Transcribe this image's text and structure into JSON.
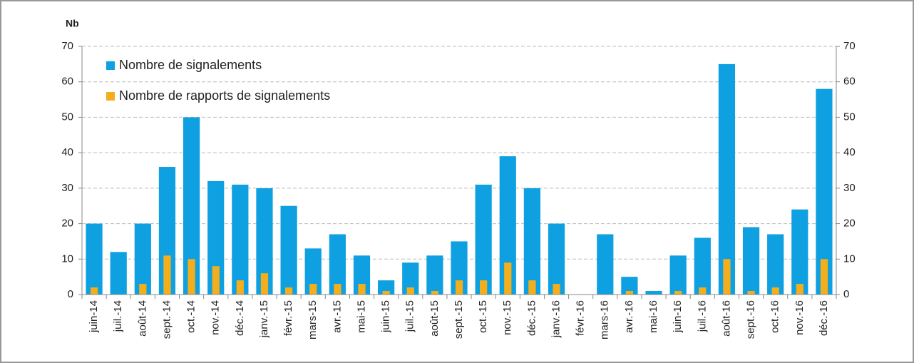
{
  "chart_data": {
    "type": "bar",
    "ylabel": "Nb",
    "categories": [
      "juin-14",
      "juil.-14",
      "août-14",
      "sept.-14",
      "oct.-14",
      "nov.-14",
      "déc.-14",
      "janv.-15",
      "févr.-15",
      "mars-15",
      "avr.-15",
      "mai-15",
      "juin-15",
      "juil.-15",
      "août-15",
      "sept.-15",
      "oct.-15",
      "nov.-15",
      "déc.-15",
      "janv.-16",
      "févr.-16",
      "mars-16",
      "avr.-16",
      "mai-16",
      "juin-16",
      "juil.-16",
      "août-16",
      "sept.-16",
      "oct.-16",
      "nov.-16",
      "déc.-16"
    ],
    "series": [
      {
        "name": "Nombre de signalements",
        "color": "#0ea0e0",
        "values": [
          20,
          12,
          20,
          36,
          50,
          32,
          31,
          30,
          25,
          13,
          17,
          11,
          4,
          9,
          11,
          15,
          31,
          39,
          30,
          20,
          0,
          17,
          5,
          1,
          11,
          16,
          65,
          19,
          17,
          24,
          58
        ]
      },
      {
        "name": "Nombre de rapports de signalements",
        "color": "#f2ae1c",
        "values": [
          2,
          0,
          3,
          11,
          10,
          8,
          4,
          6,
          2,
          3,
          3,
          3,
          1,
          2,
          1,
          4,
          4,
          9,
          4,
          3,
          0,
          0,
          1,
          0,
          1,
          2,
          10,
          1,
          2,
          3,
          10
        ]
      }
    ],
    "ylim": [
      0,
      70
    ],
    "yticks": [
      0,
      10,
      20,
      30,
      40,
      50,
      60,
      70
    ],
    "y2lim": [
      0,
      70
    ],
    "y2ticks": [
      0,
      10,
      20,
      30,
      40,
      50,
      60,
      70
    ],
    "grid": true,
    "legend": "top-left"
  }
}
